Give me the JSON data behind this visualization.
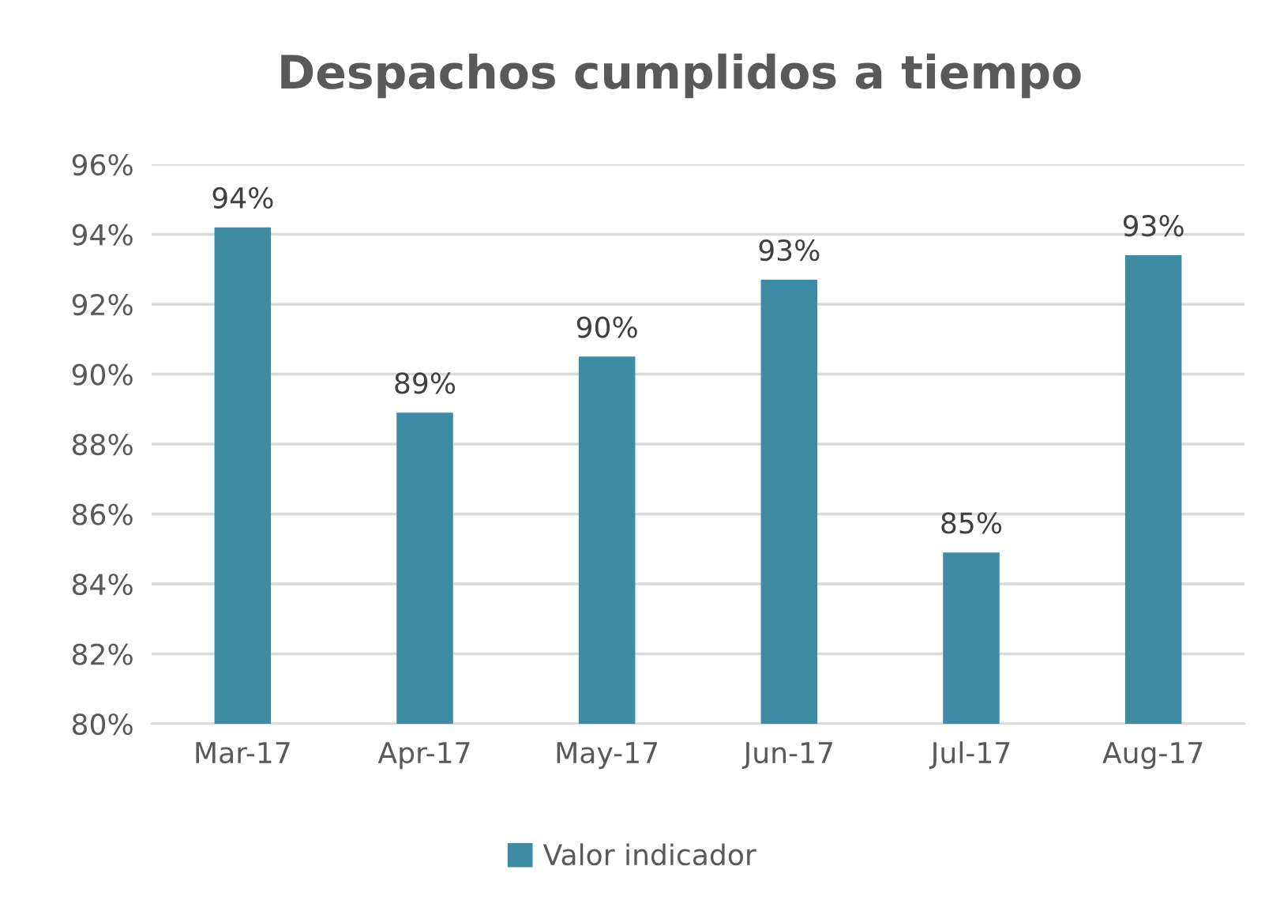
{
  "chart_data": {
    "type": "bar",
    "title": "Despachos cumplidos a tiempo",
    "categories": [
      "Mar-17",
      "Apr-17",
      "May-17",
      "Jun-17",
      "Jul-17",
      "Aug-17"
    ],
    "series": [
      {
        "name": "Valor indicador",
        "color": "#3d8ca3",
        "values": [
          94.2,
          88.9,
          90.5,
          92.7,
          84.9,
          93.4
        ],
        "value_labels": [
          "94%",
          "89%",
          "90%",
          "93%",
          "85%",
          "93%"
        ]
      }
    ],
    "ylim": [
      80,
      96
    ],
    "yticks": [
      {
        "value": 80,
        "label": "80%"
      },
      {
        "value": 82,
        "label": "82%"
      },
      {
        "value": 84,
        "label": "84%"
      },
      {
        "value": 86,
        "label": "86%"
      },
      {
        "value": 88,
        "label": "88%"
      },
      {
        "value": 90,
        "label": "90%"
      },
      {
        "value": 92,
        "label": "92%"
      },
      {
        "value": 94,
        "label": "94%"
      },
      {
        "value": 96,
        "label": "96%"
      }
    ],
    "grid": "y",
    "legend": "bottom"
  }
}
